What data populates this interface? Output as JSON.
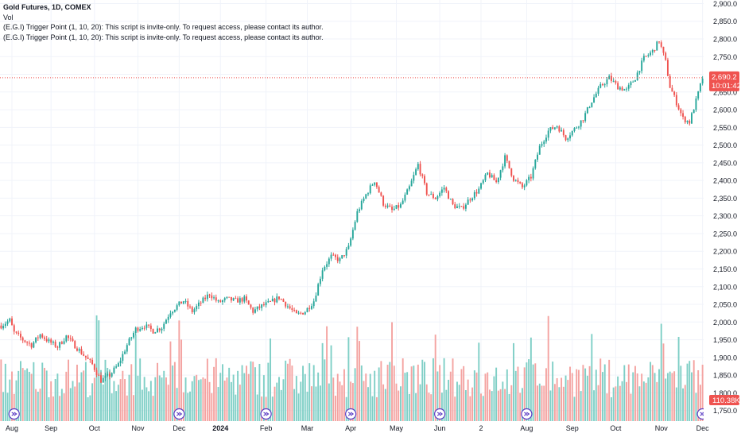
{
  "legend": {
    "symbol": "Gold Futures, 1D, COMEX",
    "vol_label": "Vol",
    "indicator_1": "(E.G.I) Trigger Point  (1, 10, 20): This script is invite-only. To request access, please contact its author.",
    "indicator_2": "(E.G.I) Trigger Point  (1, 10, 20): This script is invite-only. To request access, please contact its author."
  },
  "price_badge": {
    "price": "2,690.2",
    "countdown": "10:01:42"
  },
  "volume_badge": "110.38K",
  "colors": {
    "up": "#26a69a",
    "down": "#ef5350",
    "grid": "#f0f3fa",
    "text": "#131722"
  },
  "chart_data": {
    "type": "candlestick",
    "title": "Gold Futures, 1D, COMEX",
    "ylim": [
      1720,
      2910
    ],
    "y_ticks": [
      "2,900.0",
      "2,850.0",
      "2,800.0",
      "2,750.0",
      "2,700.0",
      "2,650.0",
      "2,600.0",
      "2,550.0",
      "2,500.0",
      "2,450.0",
      "2,400.0",
      "2,350.0",
      "2,300.0",
      "2,250.0",
      "2,200.0",
      "2,150.0",
      "2,100.0",
      "2,050.0",
      "2,000.0",
      "1,950.0",
      "1,900.0",
      "1,850.0",
      "1,800.0",
      "1,750.0"
    ],
    "y_tick_values": [
      2900,
      2850,
      2800,
      2750,
      2700,
      2650,
      2600,
      2550,
      2500,
      2450,
      2400,
      2350,
      2300,
      2250,
      2200,
      2150,
      2100,
      2050,
      2000,
      1950,
      1900,
      1850,
      1800,
      1750
    ],
    "x_tick_labels": [
      "Aug",
      "Sep",
      "Oct",
      "Nov",
      "Dec",
      "2024",
      "Feb",
      "Mar",
      "Apr",
      "May",
      "Jun",
      "2",
      "Aug",
      "Sep",
      "Oct",
      "Nov",
      "Dec"
    ],
    "x_tick_bar_index": [
      5,
      23,
      43,
      63,
      82,
      101,
      122,
      141,
      161,
      182,
      202,
      221,
      242,
      263,
      283,
      304,
      323
    ],
    "bold_labels": [
      "2024"
    ],
    "current_price": 2690.2,
    "price_keypoints": [
      [
        0,
        1990
      ],
      [
        4,
        2005
      ],
      [
        6,
        1970
      ],
      [
        10,
        1950
      ],
      [
        14,
        1935
      ],
      [
        18,
        1965
      ],
      [
        22,
        1945
      ],
      [
        26,
        1930
      ],
      [
        30,
        1960
      ],
      [
        36,
        1920
      ],
      [
        42,
        1880
      ],
      [
        46,
        1835
      ],
      [
        50,
        1850
      ],
      [
        54,
        1880
      ],
      [
        58,
        1935
      ],
      [
        62,
        1980
      ],
      [
        66,
        1990
      ],
      [
        70,
        1975
      ],
      [
        74,
        1985
      ],
      [
        78,
        2030
      ],
      [
        84,
        2060
      ],
      [
        88,
        2030
      ],
      [
        92,
        2055
      ],
      [
        96,
        2080
      ],
      [
        100,
        2055
      ],
      [
        104,
        2065
      ],
      [
        108,
        2060
      ],
      [
        112,
        2065
      ],
      [
        116,
        2030
      ],
      [
        120,
        2045
      ],
      [
        124,
        2055
      ],
      [
        128,
        2070
      ],
      [
        132,
        2045
      ],
      [
        136,
        2020
      ],
      [
        140,
        2030
      ],
      [
        144,
        2060
      ],
      [
        148,
        2150
      ],
      [
        152,
        2185
      ],
      [
        156,
        2175
      ],
      [
        160,
        2210
      ],
      [
        164,
        2310
      ],
      [
        168,
        2360
      ],
      [
        172,
        2400
      ],
      [
        176,
        2335
      ],
      [
        180,
        2315
      ],
      [
        184,
        2330
      ],
      [
        188,
        2380
      ],
      [
        192,
        2445
      ],
      [
        196,
        2365
      ],
      [
        200,
        2350
      ],
      [
        204,
        2380
      ],
      [
        208,
        2330
      ],
      [
        212,
        2320
      ],
      [
        216,
        2350
      ],
      [
        220,
        2375
      ],
      [
        224,
        2420
      ],
      [
        228,
        2395
      ],
      [
        232,
        2465
      ],
      [
        236,
        2405
      ],
      [
        240,
        2380
      ],
      [
        244,
        2410
      ],
      [
        248,
        2495
      ],
      [
        252,
        2540
      ],
      [
        256,
        2555
      ],
      [
        260,
        2520
      ],
      [
        264,
        2545
      ],
      [
        268,
        2575
      ],
      [
        272,
        2625
      ],
      [
        276,
        2665
      ],
      [
        280,
        2690
      ],
      [
        284,
        2665
      ],
      [
        288,
        2655
      ],
      [
        292,
        2690
      ],
      [
        296,
        2745
      ],
      [
        300,
        2765
      ],
      [
        303,
        2795
      ],
      [
        306,
        2735
      ],
      [
        308,
        2665
      ],
      [
        311,
        2620
      ],
      [
        314,
        2575
      ],
      [
        317,
        2565
      ],
      [
        320,
        2625
      ],
      [
        323,
        2690
      ]
    ],
    "volume_spikes": [
      [
        44,
        2
      ],
      [
        45,
        2
      ],
      [
        62,
        1
      ],
      [
        78,
        1
      ],
      [
        82,
        2
      ],
      [
        83,
        1
      ],
      [
        124,
        1
      ],
      [
        148,
        1
      ],
      [
        150,
        2
      ],
      [
        152,
        1
      ],
      [
        160,
        1
      ],
      [
        164,
        2
      ],
      [
        165,
        1
      ],
      [
        180,
        2
      ],
      [
        200,
        1
      ],
      [
        220,
        1
      ],
      [
        236,
        1
      ],
      [
        244,
        1
      ],
      [
        252,
        2
      ],
      [
        272,
        1
      ],
      [
        304,
        2
      ],
      [
        305,
        1
      ],
      [
        312,
        1
      ]
    ]
  }
}
